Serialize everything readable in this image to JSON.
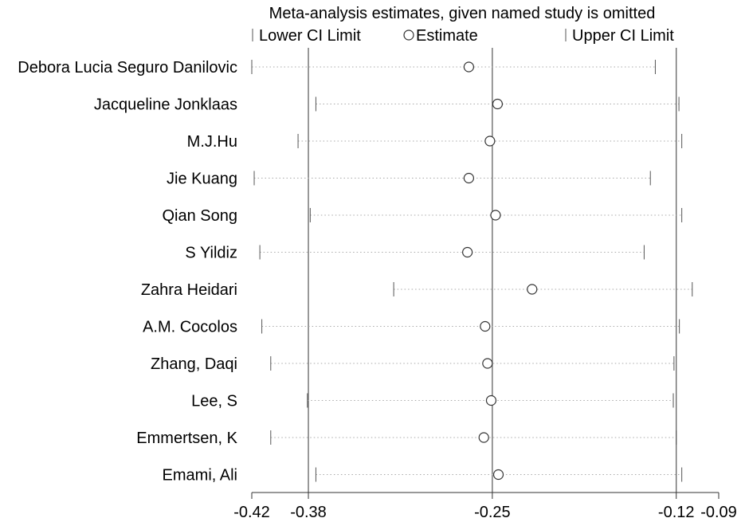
{
  "chart_data": {
    "type": "forest-sensitivity",
    "title": "Meta-analysis estimates, given named study is omitted",
    "legend": {
      "lower_label": "Lower CI Limit",
      "estimate_label": "Estimate",
      "upper_label": "Upper CI Limit"
    },
    "x_ticks": [
      {
        "value": -0.42,
        "label": "-0.42"
      },
      {
        "value": -0.38,
        "label": "-0.38"
      },
      {
        "value": -0.25,
        "label": "-0.25"
      },
      {
        "value": -0.12,
        "label": "-0.12"
      },
      {
        "value": -0.09,
        "label": "-0.09"
      }
    ],
    "xlim": [
      -0.42,
      -0.09
    ],
    "reference_lines": [
      -0.38,
      -0.25,
      -0.12
    ],
    "studies": [
      {
        "name": "Debora Lucia Seguro Danilovic",
        "lower": -0.42,
        "estimate": -0.2666,
        "upper": -0.1348
      },
      {
        "name": "Jacqueline Jonklaas",
        "lower": -0.3747,
        "estimate": -0.2463,
        "upper": -0.1181
      },
      {
        "name": "M.J.Hu",
        "lower": -0.3873,
        "estimate": -0.2517,
        "upper": -0.1161
      },
      {
        "name": "Jie Kuang",
        "lower": -0.4183,
        "estimate": -0.2666,
        "upper": -0.1383
      },
      {
        "name": "Qian Song",
        "lower": -0.3787,
        "estimate": -0.2477,
        "upper": -0.1161
      },
      {
        "name": "S Yildiz",
        "lower": -0.4143,
        "estimate": -0.2676,
        "upper": -0.1427
      },
      {
        "name": "Zahra Heidari",
        "lower": -0.3197,
        "estimate": -0.2219,
        "upper": -0.1087
      },
      {
        "name": "A.M. Cocolos",
        "lower": -0.4129,
        "estimate": -0.2551,
        "upper": -0.1178
      },
      {
        "name": "Zhang, Daqi",
        "lower": -0.4066,
        "estimate": -0.2534,
        "upper": -0.1216
      },
      {
        "name": "Lee, S",
        "lower": -0.3807,
        "estimate": -0.2508,
        "upper": -0.1221
      },
      {
        "name": "Emmertsen, K",
        "lower": -0.4066,
        "estimate": -0.256,
        "upper": -0.12
      },
      {
        "name": "Emami, Ali",
        "lower": -0.3747,
        "estimate": -0.2457,
        "upper": -0.1161
      }
    ]
  }
}
